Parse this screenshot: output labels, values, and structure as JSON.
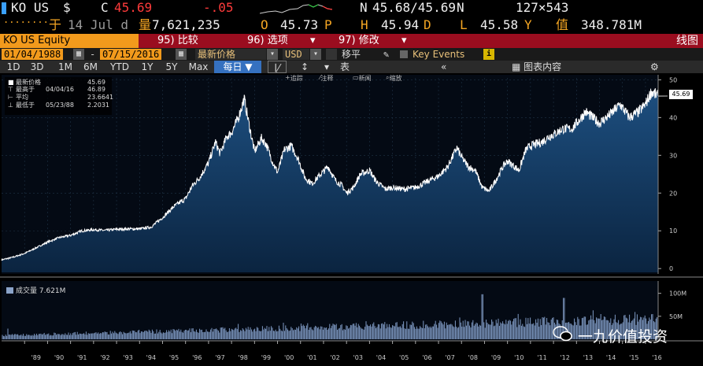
{
  "quote": {
    "ticker": "KO US",
    "currency_sym": "$",
    "close_label": "C",
    "close": "45.69",
    "change": "-.05",
    "bid_ask_label": "N",
    "bid_ask": "45.68/45.69",
    "bid_ask_suffix": "N",
    "size": "127×543",
    "date_label": "于",
    "date": "14 Jul d",
    "volume_label": "量",
    "volume": "7,621,235",
    "open_label": "O",
    "open": "45.73",
    "open_suffix": "P",
    "high_label": "H",
    "high": "45.94",
    "high_suffix": "D",
    "low_label": "L",
    "low": "45.58",
    "low_suffix": "Y",
    "value_label": "值",
    "value": "348.781M",
    "dots": "........"
  },
  "titlebar": {
    "security": "KO US Equity",
    "menu1": "95) 比较",
    "menu2": "96) 选项",
    "menu3": "97) 修改",
    "caret": "▾",
    "right": "线图"
  },
  "settings": {
    "start_date": "01/04/1988",
    "dash": "-",
    "end_date": "07/15/2016",
    "price_type": "最新价格",
    "currency": "USD",
    "moving": "移平",
    "key_events": "Key Events"
  },
  "range": {
    "buttons": [
      "1D",
      "3D",
      "1M",
      "6M",
      "YTD",
      "1Y",
      "5Y",
      "Max"
    ],
    "period": "每日",
    "table_label": "表",
    "content_label": "图表内容",
    "collapse": "«"
  },
  "legend": {
    "last_label": "最新价格",
    "last_value": "45.69",
    "high_label": "最高于",
    "high_date": "04/04/16",
    "high_value": "46.89",
    "avg_label": "平均",
    "avg_value": "23.6641",
    "low_label": "最低于",
    "low_date": "05/23/88",
    "low_value": "2.2031"
  },
  "tools": {
    "t1": "追踪",
    "t2": "注释",
    "t3": "新闻",
    "t4": "缩放"
  },
  "volume_legend": {
    "label": "成交量",
    "value": "7.621M"
  },
  "watermark": "一九价值投资",
  "colors": {
    "amber": "#f5a623",
    "red": "#ff3b3b",
    "title_red": "#9a0d1f",
    "orange": "#f29a1c",
    "fill": "#12385f",
    "line": "#ffffff"
  },
  "chart_data": {
    "type": "area",
    "x_ticks": [
      "'89",
      "'90",
      "'91",
      "'92",
      "'93",
      "'94",
      "'95",
      "'96",
      "'97",
      "'98",
      "'99",
      "'00",
      "'01",
      "'02",
      "'03",
      "'04",
      "'05",
      "'06",
      "'07",
      "'08",
      "'09",
      "'10",
      "'11",
      "'12",
      "'13",
      "'14",
      "'15",
      "'16"
    ],
    "y_ticks": [
      0,
      10,
      20,
      30,
      40,
      50
    ],
    "ylim": [
      -1,
      50.5
    ],
    "xlim": [
      1988.0,
      2016.55
    ],
    "series": [
      {
        "x": [
          1988.0,
          1988.5,
          1989.0,
          1989.5,
          1990.0,
          1990.5,
          1991.0,
          1991.5,
          1992.0,
          1992.5,
          1993.0,
          1993.5,
          1994.0,
          1994.5,
          1995.0,
          1995.5,
          1996.0,
          1996.3,
          1996.6,
          1997.0,
          1997.3,
          1997.5,
          1997.8,
          1998.0,
          1998.3,
          1998.55,
          1998.8,
          1999.0,
          1999.3,
          1999.5,
          1999.8,
          2000.0,
          2000.3,
          2000.6,
          2000.9,
          2001.2,
          2001.5,
          2001.8,
          2002.2,
          2002.5,
          2002.8,
          2003.0,
          2003.3,
          2003.6,
          2004.0,
          2004.3,
          2004.7,
          2005.0,
          2005.5,
          2006.0,
          2006.5,
          2007.0,
          2007.4,
          2007.8,
          2008.0,
          2008.3,
          2008.6,
          2008.9,
          2009.2,
          2009.5,
          2009.8,
          2010.0,
          2010.5,
          2010.8,
          2011.0,
          2011.5,
          2011.8,
          2012.0,
          2012.4,
          2012.8,
          2013.0,
          2013.4,
          2013.8,
          2014.0,
          2014.5,
          2014.9,
          2015.3,
          2015.7,
          2016.0,
          2016.26,
          2016.54
        ],
        "values": [
          2.3,
          3.0,
          4.0,
          5.5,
          7.0,
          8.2,
          8.8,
          10.0,
          10.3,
          10.1,
          10.4,
          10.5,
          10.5,
          11.0,
          13.5,
          16.5,
          18.5,
          22.0,
          24.0,
          28.0,
          33.5,
          30.5,
          35.0,
          36.0,
          40.0,
          45.0,
          37.0,
          31.0,
          34.5,
          33.0,
          28.0,
          25.5,
          31.5,
          32.5,
          29.0,
          24.0,
          22.5,
          24.5,
          27.0,
          23.5,
          22.0,
          20.0,
          21.5,
          25.0,
          26.0,
          23.0,
          21.0,
          21.5,
          21.0,
          21.5,
          23.0,
          24.5,
          27.0,
          32.0,
          29.5,
          27.0,
          26.0,
          21.5,
          20.5,
          23.5,
          27.0,
          28.5,
          26.0,
          31.5,
          32.5,
          33.5,
          35.0,
          35.5,
          37.0,
          37.0,
          38.5,
          41.5,
          39.5,
          38.5,
          41.0,
          43.5,
          40.0,
          41.5,
          43.5,
          46.89,
          45.69
        ]
      }
    ],
    "volume_ticks": [
      "50M",
      "100M"
    ],
    "volume_ylim": [
      0,
      120
    ],
    "last_value": 45.69
  }
}
